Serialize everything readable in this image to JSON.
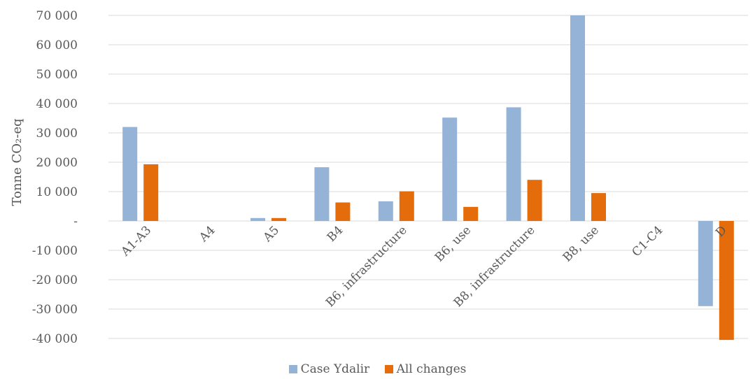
{
  "chart_data": {
    "type": "bar",
    "ylabel": "Tonne CO₂-eq",
    "ylim": [
      -40000,
      70000
    ],
    "ytick_step": 10000,
    "ytick_labels": [
      "-40 000",
      "-30 000",
      "-20 000",
      "-10 000",
      "-",
      "10 000",
      "20 000",
      "30 000",
      "40 000",
      "50 000",
      "60 000",
      "70 000"
    ],
    "categories": [
      "A1-A3",
      "A4",
      "A5",
      "B4",
      "B6, infrastructure",
      "B6, use",
      "B8, infrastructure",
      "B8, use",
      "C1-C4",
      "D"
    ],
    "series": [
      {
        "name": "Case Ydalir",
        "color": "#95B3D7",
        "values": [
          32000,
          0,
          1000,
          18300,
          6700,
          35200,
          38700,
          70000,
          0,
          -29000
        ]
      },
      {
        "name": "All changes",
        "color": "#E46C0A",
        "values": [
          19300,
          0,
          1000,
          6300,
          10100,
          4800,
          14000,
          9500,
          0,
          -40500
        ]
      }
    ],
    "grid": true,
    "legend_position": "bottom"
  }
}
